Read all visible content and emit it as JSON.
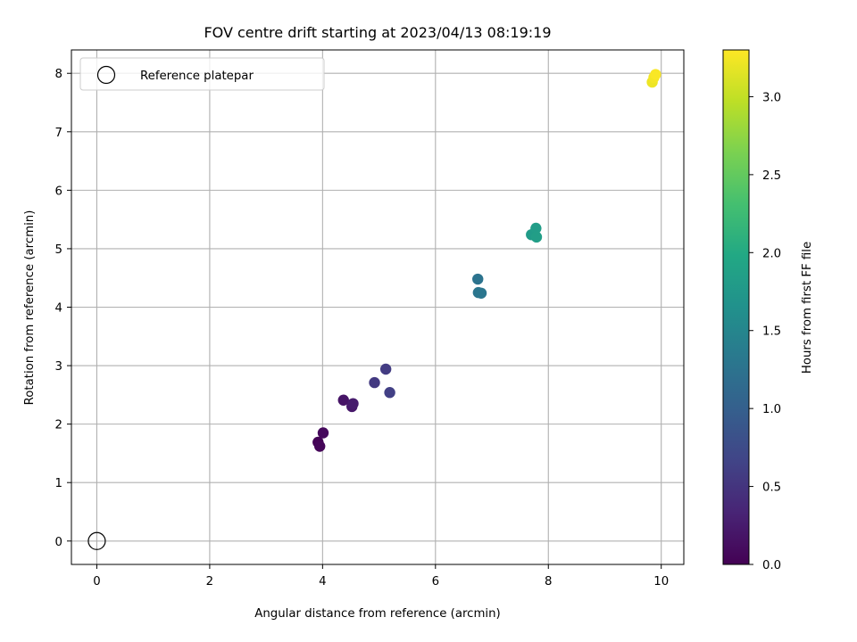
{
  "chart_data": {
    "type": "scatter",
    "title": "FOV centre drift starting at 2023/04/13 08:19:19",
    "xlabel": "Angular distance from reference (arcmin)",
    "ylabel": "Rotation from reference (arcmin)",
    "xlim": [
      -0.45,
      10.4
    ],
    "ylim": [
      -0.4,
      8.4
    ],
    "xticks": [
      0,
      2,
      4,
      6,
      8,
      10
    ],
    "yticks": [
      0,
      1,
      2,
      3,
      4,
      5,
      6,
      7,
      8
    ],
    "grid": true,
    "legend": {
      "placement": "top-left",
      "entries": [
        "Reference platepar"
      ]
    },
    "reference": {
      "x": 0,
      "y": 0,
      "marker": "open-circle",
      "label": "Reference platepar"
    },
    "colorbar": {
      "label": "Hours from first FF file",
      "colormap": "viridis",
      "min": 0.0,
      "max": 3.3,
      "ticks": [
        "0.0",
        "0.5",
        "1.0",
        "1.5",
        "2.0",
        "2.5",
        "3.0"
      ]
    },
    "points": [
      {
        "x": 3.92,
        "y": 1.69,
        "hours": 0.02
      },
      {
        "x": 3.95,
        "y": 1.62,
        "hours": 0.05
      },
      {
        "x": 4.01,
        "y": 1.85,
        "hours": 0.08
      },
      {
        "x": 4.37,
        "y": 2.41,
        "hours": 0.18
      },
      {
        "x": 4.52,
        "y": 2.3,
        "hours": 0.22
      },
      {
        "x": 4.54,
        "y": 2.35,
        "hours": 0.25
      },
      {
        "x": 4.92,
        "y": 2.71,
        "hours": 0.55
      },
      {
        "x": 5.12,
        "y": 2.94,
        "hours": 0.58
      },
      {
        "x": 5.19,
        "y": 2.54,
        "hours": 0.62
      },
      {
        "x": 6.75,
        "y": 4.48,
        "hours": 1.25
      },
      {
        "x": 6.76,
        "y": 4.25,
        "hours": 1.28
      },
      {
        "x": 6.81,
        "y": 4.24,
        "hours": 1.3
      },
      {
        "x": 7.7,
        "y": 5.24,
        "hours": 1.8
      },
      {
        "x": 7.78,
        "y": 5.35,
        "hours": 1.82
      },
      {
        "x": 7.79,
        "y": 5.2,
        "hours": 1.84
      },
      {
        "x": 9.84,
        "y": 7.85,
        "hours": 3.22
      },
      {
        "x": 9.87,
        "y": 7.93,
        "hours": 3.25
      },
      {
        "x": 9.9,
        "y": 7.98,
        "hours": 3.28
      }
    ]
  }
}
